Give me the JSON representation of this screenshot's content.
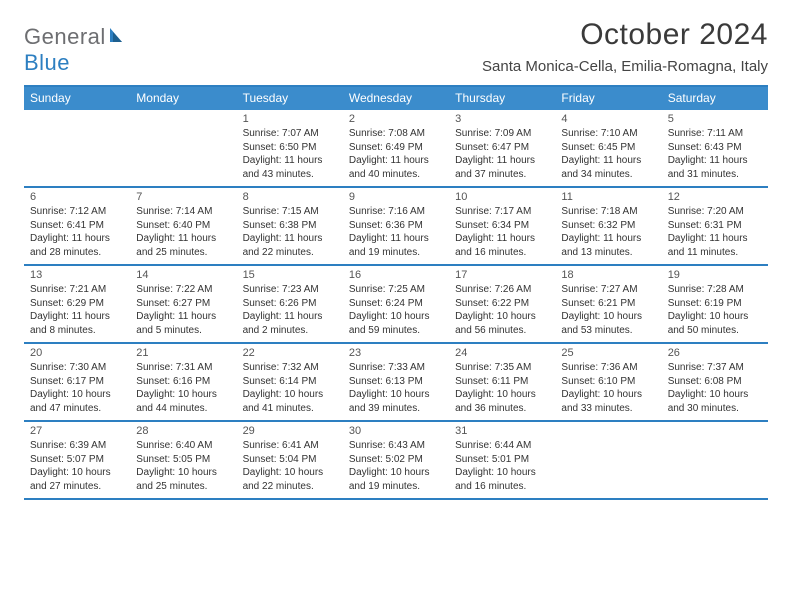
{
  "brand": {
    "part1": "General",
    "part2": "Blue"
  },
  "title": "October 2024",
  "location": "Santa Monica-Cella, Emilia-Romagna, Italy",
  "colors": {
    "header_bg": "#3b8ccc",
    "border": "#2d7fc1",
    "brand_gray": "#6d6e71",
    "brand_blue": "#2d7fc1",
    "page_bg": "#ffffff"
  },
  "daysOfWeek": [
    "Sunday",
    "Monday",
    "Tuesday",
    "Wednesday",
    "Thursday",
    "Friday",
    "Saturday"
  ],
  "weeks": [
    [
      {
        "n": "",
        "sr": "",
        "ss": "",
        "dl": ""
      },
      {
        "n": "",
        "sr": "",
        "ss": "",
        "dl": ""
      },
      {
        "n": "1",
        "sr": "Sunrise: 7:07 AM",
        "ss": "Sunset: 6:50 PM",
        "dl": "Daylight: 11 hours and 43 minutes."
      },
      {
        "n": "2",
        "sr": "Sunrise: 7:08 AM",
        "ss": "Sunset: 6:49 PM",
        "dl": "Daylight: 11 hours and 40 minutes."
      },
      {
        "n": "3",
        "sr": "Sunrise: 7:09 AM",
        "ss": "Sunset: 6:47 PM",
        "dl": "Daylight: 11 hours and 37 minutes."
      },
      {
        "n": "4",
        "sr": "Sunrise: 7:10 AM",
        "ss": "Sunset: 6:45 PM",
        "dl": "Daylight: 11 hours and 34 minutes."
      },
      {
        "n": "5",
        "sr": "Sunrise: 7:11 AM",
        "ss": "Sunset: 6:43 PM",
        "dl": "Daylight: 11 hours and 31 minutes."
      }
    ],
    [
      {
        "n": "6",
        "sr": "Sunrise: 7:12 AM",
        "ss": "Sunset: 6:41 PM",
        "dl": "Daylight: 11 hours and 28 minutes."
      },
      {
        "n": "7",
        "sr": "Sunrise: 7:14 AM",
        "ss": "Sunset: 6:40 PM",
        "dl": "Daylight: 11 hours and 25 minutes."
      },
      {
        "n": "8",
        "sr": "Sunrise: 7:15 AM",
        "ss": "Sunset: 6:38 PM",
        "dl": "Daylight: 11 hours and 22 minutes."
      },
      {
        "n": "9",
        "sr": "Sunrise: 7:16 AM",
        "ss": "Sunset: 6:36 PM",
        "dl": "Daylight: 11 hours and 19 minutes."
      },
      {
        "n": "10",
        "sr": "Sunrise: 7:17 AM",
        "ss": "Sunset: 6:34 PM",
        "dl": "Daylight: 11 hours and 16 minutes."
      },
      {
        "n": "11",
        "sr": "Sunrise: 7:18 AM",
        "ss": "Sunset: 6:32 PM",
        "dl": "Daylight: 11 hours and 13 minutes."
      },
      {
        "n": "12",
        "sr": "Sunrise: 7:20 AM",
        "ss": "Sunset: 6:31 PM",
        "dl": "Daylight: 11 hours and 11 minutes."
      }
    ],
    [
      {
        "n": "13",
        "sr": "Sunrise: 7:21 AM",
        "ss": "Sunset: 6:29 PM",
        "dl": "Daylight: 11 hours and 8 minutes."
      },
      {
        "n": "14",
        "sr": "Sunrise: 7:22 AM",
        "ss": "Sunset: 6:27 PM",
        "dl": "Daylight: 11 hours and 5 minutes."
      },
      {
        "n": "15",
        "sr": "Sunrise: 7:23 AM",
        "ss": "Sunset: 6:26 PM",
        "dl": "Daylight: 11 hours and 2 minutes."
      },
      {
        "n": "16",
        "sr": "Sunrise: 7:25 AM",
        "ss": "Sunset: 6:24 PM",
        "dl": "Daylight: 10 hours and 59 minutes."
      },
      {
        "n": "17",
        "sr": "Sunrise: 7:26 AM",
        "ss": "Sunset: 6:22 PM",
        "dl": "Daylight: 10 hours and 56 minutes."
      },
      {
        "n": "18",
        "sr": "Sunrise: 7:27 AM",
        "ss": "Sunset: 6:21 PM",
        "dl": "Daylight: 10 hours and 53 minutes."
      },
      {
        "n": "19",
        "sr": "Sunrise: 7:28 AM",
        "ss": "Sunset: 6:19 PM",
        "dl": "Daylight: 10 hours and 50 minutes."
      }
    ],
    [
      {
        "n": "20",
        "sr": "Sunrise: 7:30 AM",
        "ss": "Sunset: 6:17 PM",
        "dl": "Daylight: 10 hours and 47 minutes."
      },
      {
        "n": "21",
        "sr": "Sunrise: 7:31 AM",
        "ss": "Sunset: 6:16 PM",
        "dl": "Daylight: 10 hours and 44 minutes."
      },
      {
        "n": "22",
        "sr": "Sunrise: 7:32 AM",
        "ss": "Sunset: 6:14 PM",
        "dl": "Daylight: 10 hours and 41 minutes."
      },
      {
        "n": "23",
        "sr": "Sunrise: 7:33 AM",
        "ss": "Sunset: 6:13 PM",
        "dl": "Daylight: 10 hours and 39 minutes."
      },
      {
        "n": "24",
        "sr": "Sunrise: 7:35 AM",
        "ss": "Sunset: 6:11 PM",
        "dl": "Daylight: 10 hours and 36 minutes."
      },
      {
        "n": "25",
        "sr": "Sunrise: 7:36 AM",
        "ss": "Sunset: 6:10 PM",
        "dl": "Daylight: 10 hours and 33 minutes."
      },
      {
        "n": "26",
        "sr": "Sunrise: 7:37 AM",
        "ss": "Sunset: 6:08 PM",
        "dl": "Daylight: 10 hours and 30 minutes."
      }
    ],
    [
      {
        "n": "27",
        "sr": "Sunrise: 6:39 AM",
        "ss": "Sunset: 5:07 PM",
        "dl": "Daylight: 10 hours and 27 minutes."
      },
      {
        "n": "28",
        "sr": "Sunrise: 6:40 AM",
        "ss": "Sunset: 5:05 PM",
        "dl": "Daylight: 10 hours and 25 minutes."
      },
      {
        "n": "29",
        "sr": "Sunrise: 6:41 AM",
        "ss": "Sunset: 5:04 PM",
        "dl": "Daylight: 10 hours and 22 minutes."
      },
      {
        "n": "30",
        "sr": "Sunrise: 6:43 AM",
        "ss": "Sunset: 5:02 PM",
        "dl": "Daylight: 10 hours and 19 minutes."
      },
      {
        "n": "31",
        "sr": "Sunrise: 6:44 AM",
        "ss": "Sunset: 5:01 PM",
        "dl": "Daylight: 10 hours and 16 minutes."
      },
      {
        "n": "",
        "sr": "",
        "ss": "",
        "dl": ""
      },
      {
        "n": "",
        "sr": "",
        "ss": "",
        "dl": ""
      }
    ]
  ]
}
